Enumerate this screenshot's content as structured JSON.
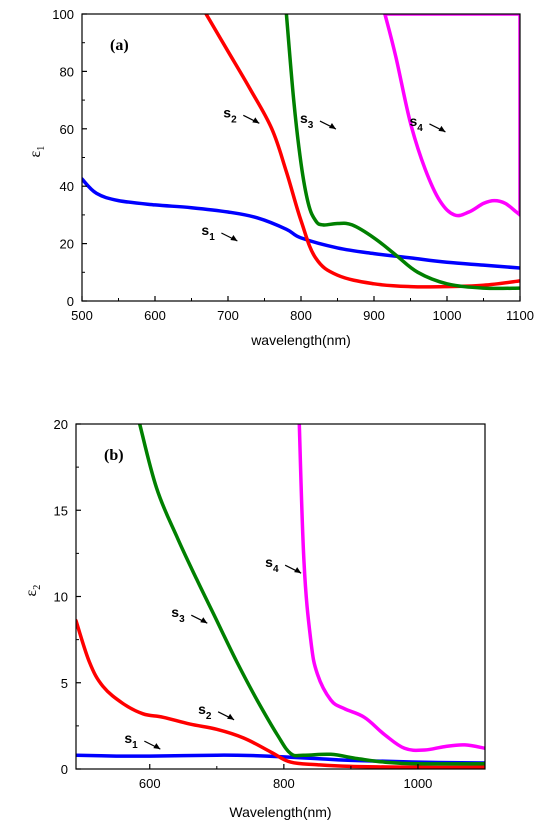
{
  "chart_data": [
    {
      "type": "line",
      "panel_label": "(a)",
      "xlabel": "wavelength(nm)",
      "ylabel": "ε",
      "ylabel_sub": "1",
      "xlim": [
        500,
        1100
      ],
      "ylim": [
        0,
        100
      ],
      "xticks": [
        500,
        600,
        700,
        800,
        900,
        1000,
        1100
      ],
      "yticks": [
        0,
        20,
        40,
        60,
        80,
        100
      ],
      "grid": false,
      "series": [
        {
          "name": "s1",
          "color": "#0000ff",
          "x": [
            500,
            520,
            550,
            600,
            650,
            700,
            740,
            780,
            800,
            850,
            900,
            950,
            1000,
            1050,
            1100
          ],
          "y": [
            42.5,
            37.5,
            35,
            33.5,
            32.5,
            31,
            29,
            25,
            22,
            18.5,
            16.5,
            15,
            13.5,
            12.5,
            11.5
          ]
        },
        {
          "name": "s2",
          "color": "#ff0000",
          "x": [
            670,
            700,
            730,
            760,
            780,
            800,
            820,
            850,
            900,
            950,
            1000,
            1050,
            1100
          ],
          "y": [
            100,
            87,
            74,
            60,
            45,
            28,
            15,
            9,
            6,
            5,
            5,
            5.5,
            7
          ]
        },
        {
          "name": "s3",
          "color": "#008000",
          "x": [
            780,
            790,
            800,
            810,
            820,
            830,
            850,
            870,
            900,
            930,
            960,
            1000,
            1050,
            1100
          ],
          "y": [
            100,
            70,
            48,
            34,
            28,
            26.5,
            27,
            26.5,
            22,
            16,
            10,
            6,
            4.5,
            4.5
          ]
        },
        {
          "name": "s4",
          "color": "#ff00ff",
          "x": [
            915,
            930,
            950,
            970,
            990,
            1010,
            1030,
            1050,
            1065,
            1080,
            1095,
            1100
          ],
          "y": [
            100,
            85,
            62,
            46,
            35,
            30,
            31,
            34,
            35,
            34,
            31,
            30
          ]
        },
        {
          "name": "",
          "color": "#ff00ff",
          "x": [
            915,
            1100,
            1100
          ],
          "y": [
            100,
            100,
            30
          ]
        }
      ],
      "annotations": [
        {
          "label": "s",
          "sub": "2",
          "x": 710,
          "y": 64
        },
        {
          "label": "s",
          "sub": "3",
          "x": 815,
          "y": 62
        },
        {
          "label": "s",
          "sub": "4",
          "x": 965,
          "y": 61
        },
        {
          "label": "s",
          "sub": "1",
          "x": 680,
          "y": 23
        }
      ]
    },
    {
      "type": "line",
      "panel_label": "(b)",
      "xlabel": "Wavelength(nm)",
      "ylabel": "ε",
      "ylabel_sub": "2",
      "xlim": [
        490,
        1100
      ],
      "ylim": [
        0,
        20
      ],
      "xticks": [
        600,
        800,
        1000
      ],
      "yticks": [
        0,
        5,
        10,
        15,
        20
      ],
      "grid": false,
      "series": [
        {
          "name": "s1",
          "color": "#0000ff",
          "x": [
            490,
            550,
            600,
            700,
            750,
            800,
            850,
            900,
            1000,
            1100
          ],
          "y": [
            0.8,
            0.75,
            0.75,
            0.8,
            0.78,
            0.7,
            0.6,
            0.5,
            0.4,
            0.35
          ]
        },
        {
          "name": "s2",
          "color": "#ff0000",
          "x": [
            490,
            510,
            530,
            560,
            590,
            620,
            660,
            700,
            740,
            780,
            810,
            850,
            900,
            1000,
            1100
          ],
          "y": [
            8.6,
            6.2,
            4.8,
            3.8,
            3.2,
            3.0,
            2.6,
            2.3,
            1.8,
            1.0,
            0.4,
            0.25,
            0.15,
            0.1,
            0.1
          ]
        },
        {
          "name": "s3",
          "color": "#008000",
          "x": [
            585,
            610,
            640,
            670,
            700,
            730,
            760,
            790,
            810,
            830,
            870,
            910,
            950,
            1000,
            1100
          ],
          "y": [
            20,
            16.3,
            13.5,
            11,
            8.6,
            6.2,
            4.0,
            2.0,
            0.9,
            0.8,
            0.85,
            0.6,
            0.4,
            0.3,
            0.3
          ]
        },
        {
          "name": "s4",
          "color": "#ff00ff",
          "x": [
            823,
            830,
            840,
            850,
            870,
            890,
            920,
            950,
            980,
            1010,
            1040,
            1070,
            1100
          ],
          "y": [
            20,
            12,
            7.5,
            5.5,
            4.0,
            3.5,
            3.0,
            2.0,
            1.2,
            1.1,
            1.3,
            1.4,
            1.2
          ]
        }
      ],
      "annotations": [
        {
          "label": "s",
          "sub": "4",
          "x": 790,
          "y": 11.7
        },
        {
          "label": "s",
          "sub": "3",
          "x": 650,
          "y": 8.8
        },
        {
          "label": "s",
          "sub": "2",
          "x": 690,
          "y": 3.2
        },
        {
          "label": "s",
          "sub": "1",
          "x": 580,
          "y": 1.5
        }
      ]
    }
  ]
}
